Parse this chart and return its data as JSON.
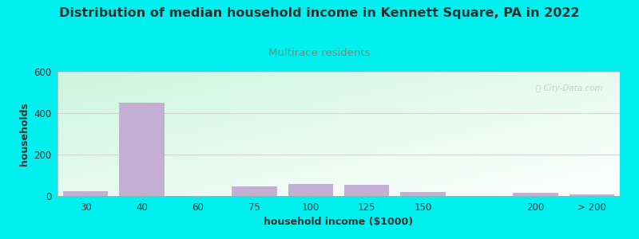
{
  "title": "Distribution of median household income in Kennett Square, PA in 2022",
  "subtitle": "Multirace residents",
  "xlabel": "household income ($1000)",
  "ylabel": "households",
  "title_fontsize": 11.5,
  "subtitle_fontsize": 9.5,
  "subtitle_color": "#778877",
  "title_color": "#1a1a2e",
  "label_fontsize": 9,
  "tick_fontsize": 8.5,
  "bar_color": "#c4aed4",
  "background_outer": "#00efef",
  "ylim": [
    0,
    600
  ],
  "yticks": [
    0,
    200,
    400,
    600
  ],
  "values": [
    25,
    450,
    0,
    45,
    58,
    55,
    20,
    0,
    15,
    7
  ],
  "bar_positions": [
    1,
    2,
    3,
    4,
    5,
    6,
    7,
    8,
    9,
    10
  ],
  "bar_widths": [
    0.8,
    0.8,
    0.8,
    0.8,
    0.8,
    0.8,
    0.8,
    0.8,
    0.8,
    0.8
  ],
  "xtick_labels": [
    "30",
    "40",
    "60",
    "75",
    "100",
    "125",
    "150",
    "200",
    "> 200"
  ],
  "xtick_positions": [
    1,
    2,
    3,
    4,
    5,
    6,
    7,
    9,
    10
  ],
  "watermark_text": "Ⓢ City-Data.com"
}
